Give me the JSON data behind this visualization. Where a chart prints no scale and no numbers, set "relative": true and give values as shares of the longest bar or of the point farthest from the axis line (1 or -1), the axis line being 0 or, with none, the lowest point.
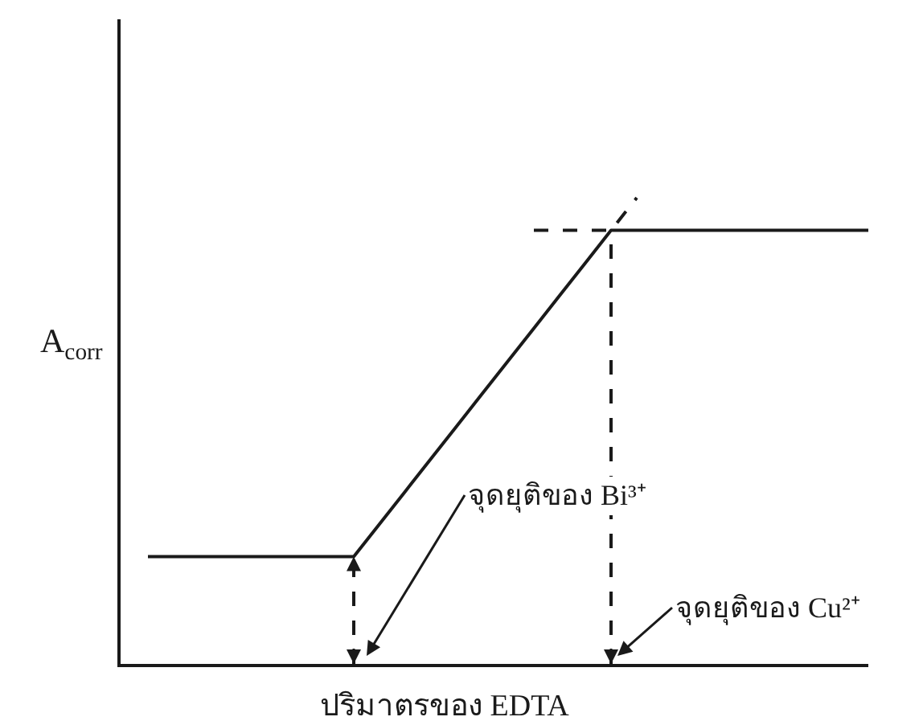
{
  "chart_data": {
    "type": "line",
    "relative": true,
    "xlabel": "ปริมาตรของ EDTA",
    "ylabel": "A$_{corr}$",
    "categories": [
      null,
      null,
      null,
      null,
      null,
      null,
      null,
      null,
      null,
      null,
      null,
      null,
      null,
      null,
      null,
      null,
      null,
      null,
      null,
      null,
      null,
      null,
      null,
      null,
      null,
      null,
      null,
      null,
      null
    ],
    "series": [
      {
        "color": "#1a1a1a",
        "line_style": "solid",
        "values": [
          0.23,
          0.23,
          0.23,
          0.23,
          0.23,
          0.23,
          0.23,
          0.23,
          0.23,
          0.3,
          0.37,
          0.44,
          0.51,
          0.58,
          0.65,
          0.72,
          0.79,
          0.86,
          0.93,
          0.93,
          0.93,
          0.93,
          0.93,
          0.93,
          0.93,
          0.93,
          0.93,
          0.93,
          0.93
        ]
      },
      {
        "color": "#1a1a1a",
        "line_style": "dashed",
        "values": [
          null,
          null,
          null,
          null,
          null,
          null,
          null,
          null,
          null,
          null,
          null,
          null,
          null,
          null,
          null,
          0.93,
          0.93,
          0.93,
          0.93,
          1.0,
          null,
          null,
          null,
          null,
          null,
          null,
          null,
          null,
          null
        ]
      }
    ],
    "annotations": [
      "จุดยุติของ Bi³⁺",
      "จุดยุติของ Cu²⁺"
    ],
    "marker": "none"
  }
}
